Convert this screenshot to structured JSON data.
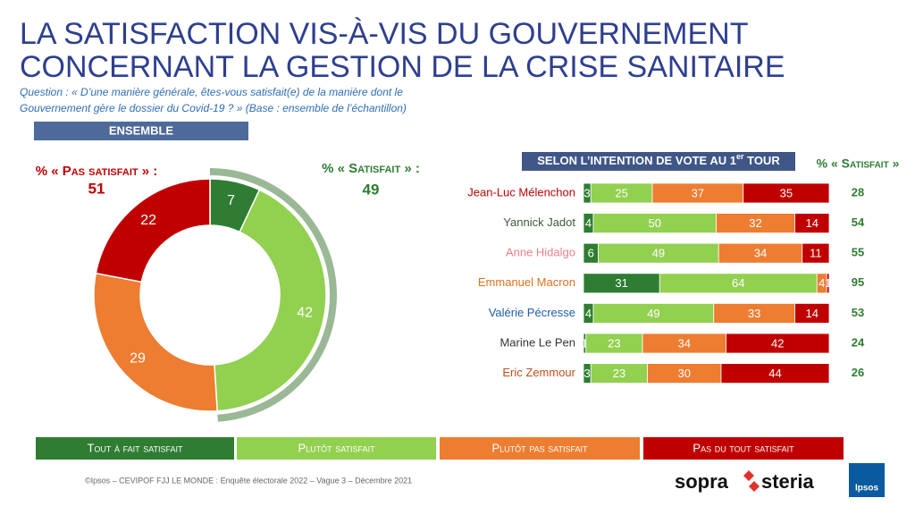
{
  "header": {
    "title": [
      "LA SATISFACTION VIS-À-VIS DU GOUVERNEMENT",
      "CONCERNANT LA GESTION DE LA CRISE SANITAIRE"
    ],
    "question": [
      "Question : « D’une manière générale, êtes-vous satisfait(e) de la manière dont le",
      "Gouvernement gère le dossier du Covid-19 ? » (Base : ensemble de l’échantillon)"
    ]
  },
  "chart_data": [
    {
      "type": "donut",
      "label": "ENSEMBLE",
      "values": [
        7,
        42,
        29,
        22
      ],
      "colors": [
        "#2e7d32",
        "#92d050",
        "#ed7d31",
        "#c00000"
      ],
      "groups": [
        {
          "label": "% « Pas satisfait » :",
          "value": 51,
          "color": "#c00000"
        },
        {
          "label": "% « Satisfait » :",
          "value": 49,
          "color": "#2e7d32"
        }
      ]
    },
    {
      "type": "bar",
      "orientation": "horizontal",
      "stacked": true,
      "label": [
        "SELON L’INTENTION DE VOTE AU 1",
        "er",
        " TOUR"
      ],
      "categories": [
        "Jean-Luc Mélenchon",
        "Yannick Jadot",
        "Anne Hidalgo",
        "Emmanuel Macron",
        "Valérie Pécresse",
        "Marine Le Pen",
        "Eric Zemmour"
      ],
      "category_colors": [
        "#c00000",
        "#3d5a40",
        "#e8808a",
        "#e07020",
        "#1f5fa8",
        "#333333",
        "#c0501e"
      ],
      "series": [
        {
          "name": "Tout à fait satisfait",
          "color": "#2e7d32",
          "values": [
            3,
            4,
            6,
            31,
            4,
            1,
            3
          ]
        },
        {
          "name": "Plutôt satisfait",
          "color": "#92d050",
          "values": [
            25,
            50,
            49,
            64,
            49,
            23,
            23
          ]
        },
        {
          "name": "Plutôt pas satisfait",
          "color": "#ed7d31",
          "values": [
            37,
            32,
            34,
            4,
            33,
            34,
            30
          ]
        },
        {
          "name": "Pas du tout satisfait",
          "color": "#c00000",
          "values": [
            35,
            14,
            11,
            1,
            14,
            42,
            44
          ]
        }
      ],
      "totals": {
        "label": "% « Satisfait »",
        "color": "#2e7d32",
        "values": [
          28,
          54,
          55,
          95,
          53,
          24,
          26
        ]
      }
    }
  ],
  "footer": "©Ipsos – CEVIPOF FJJ LE MONDE : Enquête électorale 2022 – Vague 3 – Décembre 2021",
  "logos": {
    "sopra": "sopra",
    "steria": "steria",
    "ipsos": "Ipsos"
  }
}
